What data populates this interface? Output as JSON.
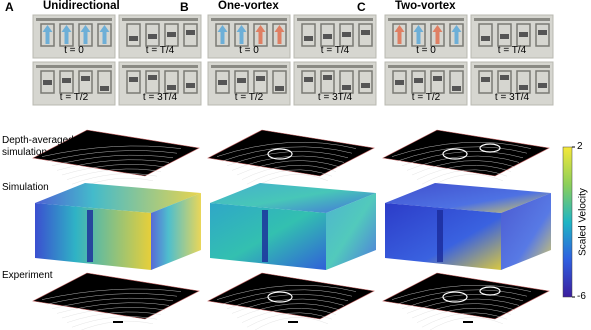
{
  "panels": [
    {
      "letter": "A",
      "title": "Unidirectional",
      "frames": [
        "t = 0",
        "t = T/4",
        "t = T/2",
        "t = 3T/4"
      ]
    },
    {
      "letter": "B",
      "title": "One-vortex",
      "frames": [
        "t = 0",
        "t = T/4",
        "t = T/2",
        "t = 3T/4"
      ]
    },
    {
      "letter": "C",
      "title": "Two-vortex",
      "frames": [
        "t = 0",
        "t = T/4",
        "t = T/2",
        "t = 3T/4"
      ]
    }
  ],
  "row_labels": [
    "Depth-averaged simulation",
    "Simulation",
    "Experiment"
  ],
  "colorbar": {
    "label": "Scaled Velocity",
    "lim": [
      -6,
      2
    ],
    "ticks": [
      2,
      -6
    ]
  }
}
